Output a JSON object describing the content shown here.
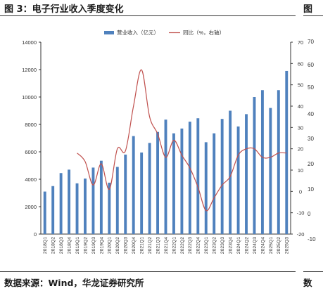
{
  "figure": {
    "title": "图 3：电子行业收入季度变化",
    "source": "数据来源：Wind，华龙证券研究所",
    "next_title": "图",
    "next_source": "数",
    "next_axis": [
      "70",
      "60",
      "50",
      "40",
      "30",
      "20",
      "10",
      "0",
      "-10"
    ]
  },
  "chart_data": {
    "type": "bar",
    "categories": [
      "2018Q1",
      "2018Q2",
      "2018Q3",
      "2018Q4",
      "2019Q1",
      "2019Q2",
      "2019Q3",
      "2019Q4",
      "2020Q1",
      "2020Q2",
      "2020Q3",
      "2020Q4",
      "2021Q1",
      "2021Q2",
      "2021Q3",
      "2021Q4",
      "2022Q1",
      "2022Q2",
      "2022Q3",
      "2022Q4",
      "2023Q1",
      "2023Q2",
      "2023Q3",
      "2023Q4",
      "2024Q1",
      "2024Q2",
      "2024Q3",
      "2024Q4",
      "2025Q1",
      "2025Q2",
      "2025Q3"
    ],
    "series": [
      {
        "name": "营业收入（亿元）",
        "type": "bar",
        "axis": "left",
        "color": "#4f81bd",
        "values": [
          3100,
          3500,
          4450,
          4700,
          3700,
          4050,
          4850,
          5350,
          3750,
          4900,
          5800,
          7150,
          5950,
          6650,
          7450,
          8350,
          7350,
          7700,
          8200,
          8450,
          6700,
          7350,
          8400,
          9000,
          7850,
          8750,
          10000,
          10500,
          9200,
          10500,
          11900
        ]
      },
      {
        "name": "同比（%，右轴）",
        "type": "line",
        "axis": "right",
        "color": "#c0504d",
        "values": [
          null,
          null,
          null,
          null,
          18,
          14,
          3,
          13,
          1,
          20,
          19,
          40,
          57,
          35,
          27,
          16,
          24,
          17,
          11,
          2,
          -9,
          -3,
          3,
          7,
          17,
          20,
          20,
          16,
          16,
          18,
          18
        ]
      }
    ],
    "ylim_left": [
      0,
      14000
    ],
    "yticks_left": [
      0,
      2000,
      4000,
      6000,
      8000,
      10000,
      12000,
      14000
    ],
    "ylim_right": [
      -20,
      70
    ],
    "yticks_right": [
      -20,
      -10,
      0,
      10,
      20,
      30,
      40,
      50,
      60,
      70
    ],
    "legend_position": "top-center",
    "grid": false
  }
}
